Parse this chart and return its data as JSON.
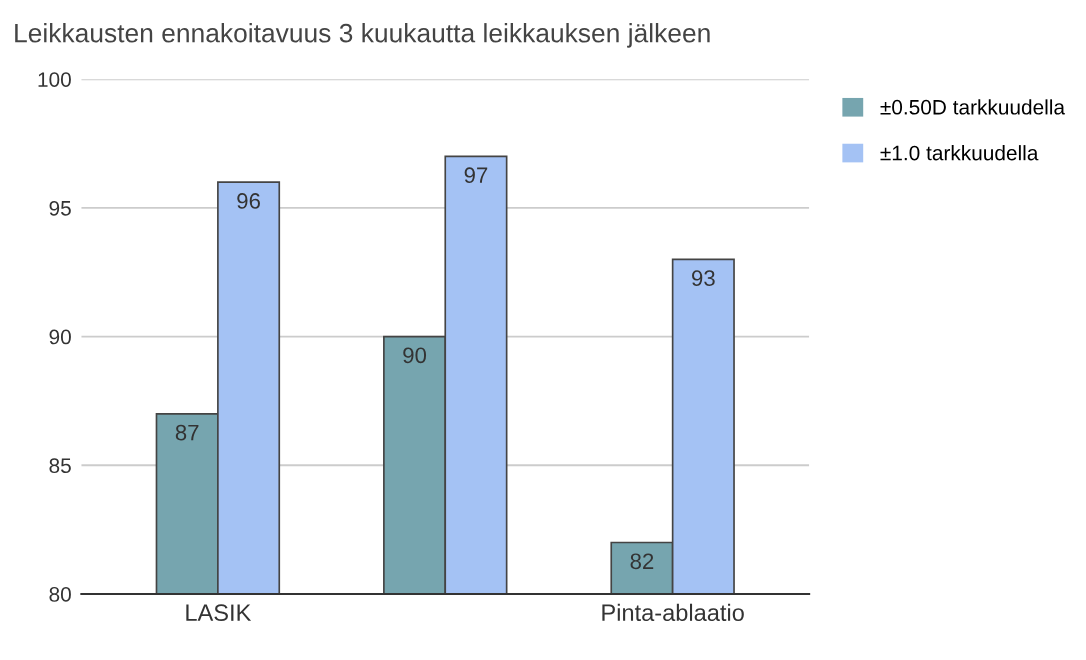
{
  "chart_data": {
    "type": "bar",
    "title": "Leikkausten ennakoitavuus 3 kuukautta leikkauksen jälkeen",
    "categories": [
      "LASIK",
      null,
      "Pinta-ablaatio"
    ],
    "series": [
      {
        "name": "±0.50D tarkkuudella",
        "color": "#76a5af",
        "values": [
          87,
          90,
          82
        ]
      },
      {
        "name": "±1.0 tarkkuudella",
        "color": "#a4c2f4",
        "values": [
          96,
          97,
          93
        ]
      }
    ],
    "ylim": [
      80,
      100
    ],
    "yticks": [
      80,
      85,
      90,
      95,
      100
    ],
    "grid": "y",
    "legend": "top right",
    "data_labels": true
  }
}
